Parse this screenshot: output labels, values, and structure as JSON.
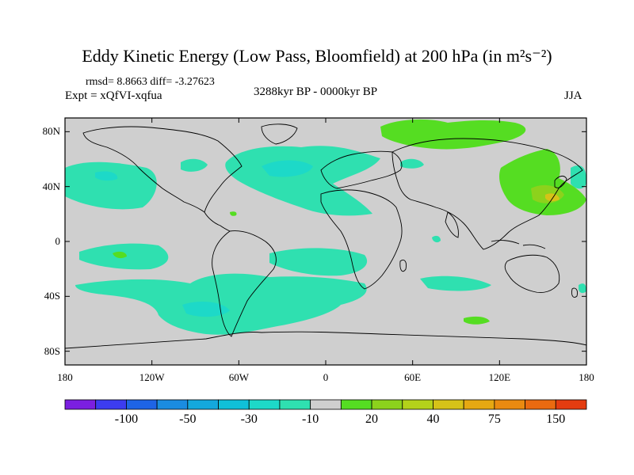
{
  "title": "Eddy Kinetic Energy (Low Pass, Bloomfield) at 200 hPa (in m²s⁻²)",
  "stats": "rmsd= 8.8663 diff= -3.27623",
  "experiment": "Expt = xQfVI-xqfua",
  "period": "3288kyr BP - 0000kyr BP",
  "season": "JJA",
  "lat_ticks": [
    {
      "label": "80N",
      "lat": 80
    },
    {
      "label": "40N",
      "lat": 40
    },
    {
      "label": "0",
      "lat": 0
    },
    {
      "label": "40S",
      "lat": -40
    },
    {
      "label": "80S",
      "lat": -80
    }
  ],
  "lon_ticks": [
    {
      "label": "180",
      "lon": -180
    },
    {
      "label": "120W",
      "lon": -120
    },
    {
      "label": "60W",
      "lon": -60
    },
    {
      "label": "0",
      "lon": 0
    },
    {
      "label": "60E",
      "lon": 60
    },
    {
      "label": "120E",
      "lon": 120
    },
    {
      "label": "180",
      "lon": 180
    }
  ],
  "colorbar": {
    "colors": [
      "#7b1fe0",
      "#3c3cf0",
      "#1e64e6",
      "#1a8ce0",
      "#14a8dc",
      "#10c0d8",
      "#1dd9c8",
      "#2fe0b0",
      "#cfcfcf",
      "#55dd22",
      "#8cd21c",
      "#b4d21a",
      "#d6c218",
      "#e6a812",
      "#ea8a10",
      "#ea6a10",
      "#e43c10"
    ],
    "labels": [
      {
        "text": "-100",
        "index": 2
      },
      {
        "text": "-50",
        "index": 4
      },
      {
        "text": "-30",
        "index": 6
      },
      {
        "text": "-10",
        "index": 8
      },
      {
        "text": "20",
        "index": 10
      },
      {
        "text": "40",
        "index": 12
      },
      {
        "text": "75",
        "index": 14
      },
      {
        "text": "150",
        "index": 16
      }
    ]
  },
  "map_colors": {
    "background": "#cfcfcf",
    "neg_light": "#2fe0b0",
    "neg_mid": "#1dd9c8",
    "pos_light": "#55dd22",
    "pos_mid": "#8cd21c",
    "pos_high": "#d6c218"
  }
}
